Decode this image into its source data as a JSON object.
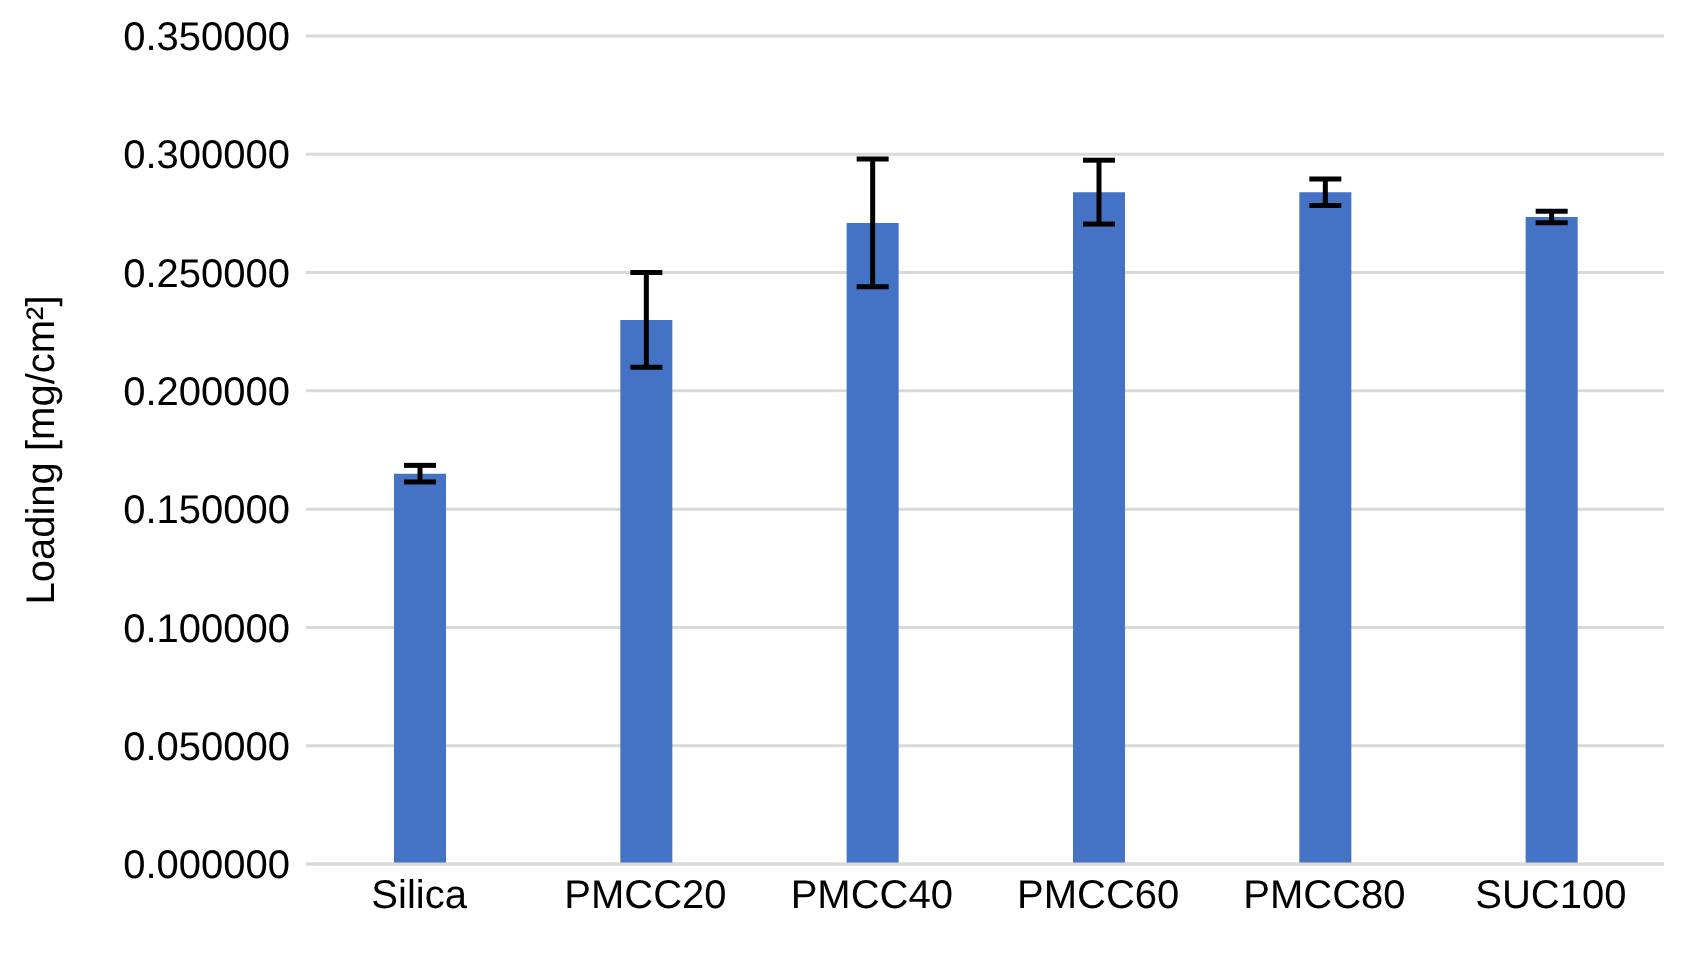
{
  "chart_data": {
    "type": "bar",
    "ylabel": "Loading [mg/cm²]",
    "categories": [
      "Silica",
      "PMCC20",
      "PMCC40",
      "PMCC60",
      "PMCC80",
      "SUC100"
    ],
    "values": [
      0.165,
      0.23,
      0.271,
      0.284,
      0.284,
      0.2735
    ],
    "errors": [
      0.0035,
      0.02,
      0.027,
      0.0135,
      0.0056,
      0.0024
    ],
    "color": "#4472c4",
    "ylim": [
      0,
      0.35
    ],
    "yticks": [
      {
        "value": 0,
        "label": "0.000000"
      },
      {
        "value": 0.05,
        "label": "0.050000"
      },
      {
        "value": 0.1,
        "label": "0.100000"
      },
      {
        "value": 0.15,
        "label": "0.150000"
      },
      {
        "value": 0.2,
        "label": "0.200000"
      },
      {
        "value": 0.25,
        "label": "0.250000"
      },
      {
        "value": 0.3,
        "label": "0.300000"
      },
      {
        "value": 0.35,
        "label": "0.350000"
      }
    ],
    "grid": "y"
  }
}
